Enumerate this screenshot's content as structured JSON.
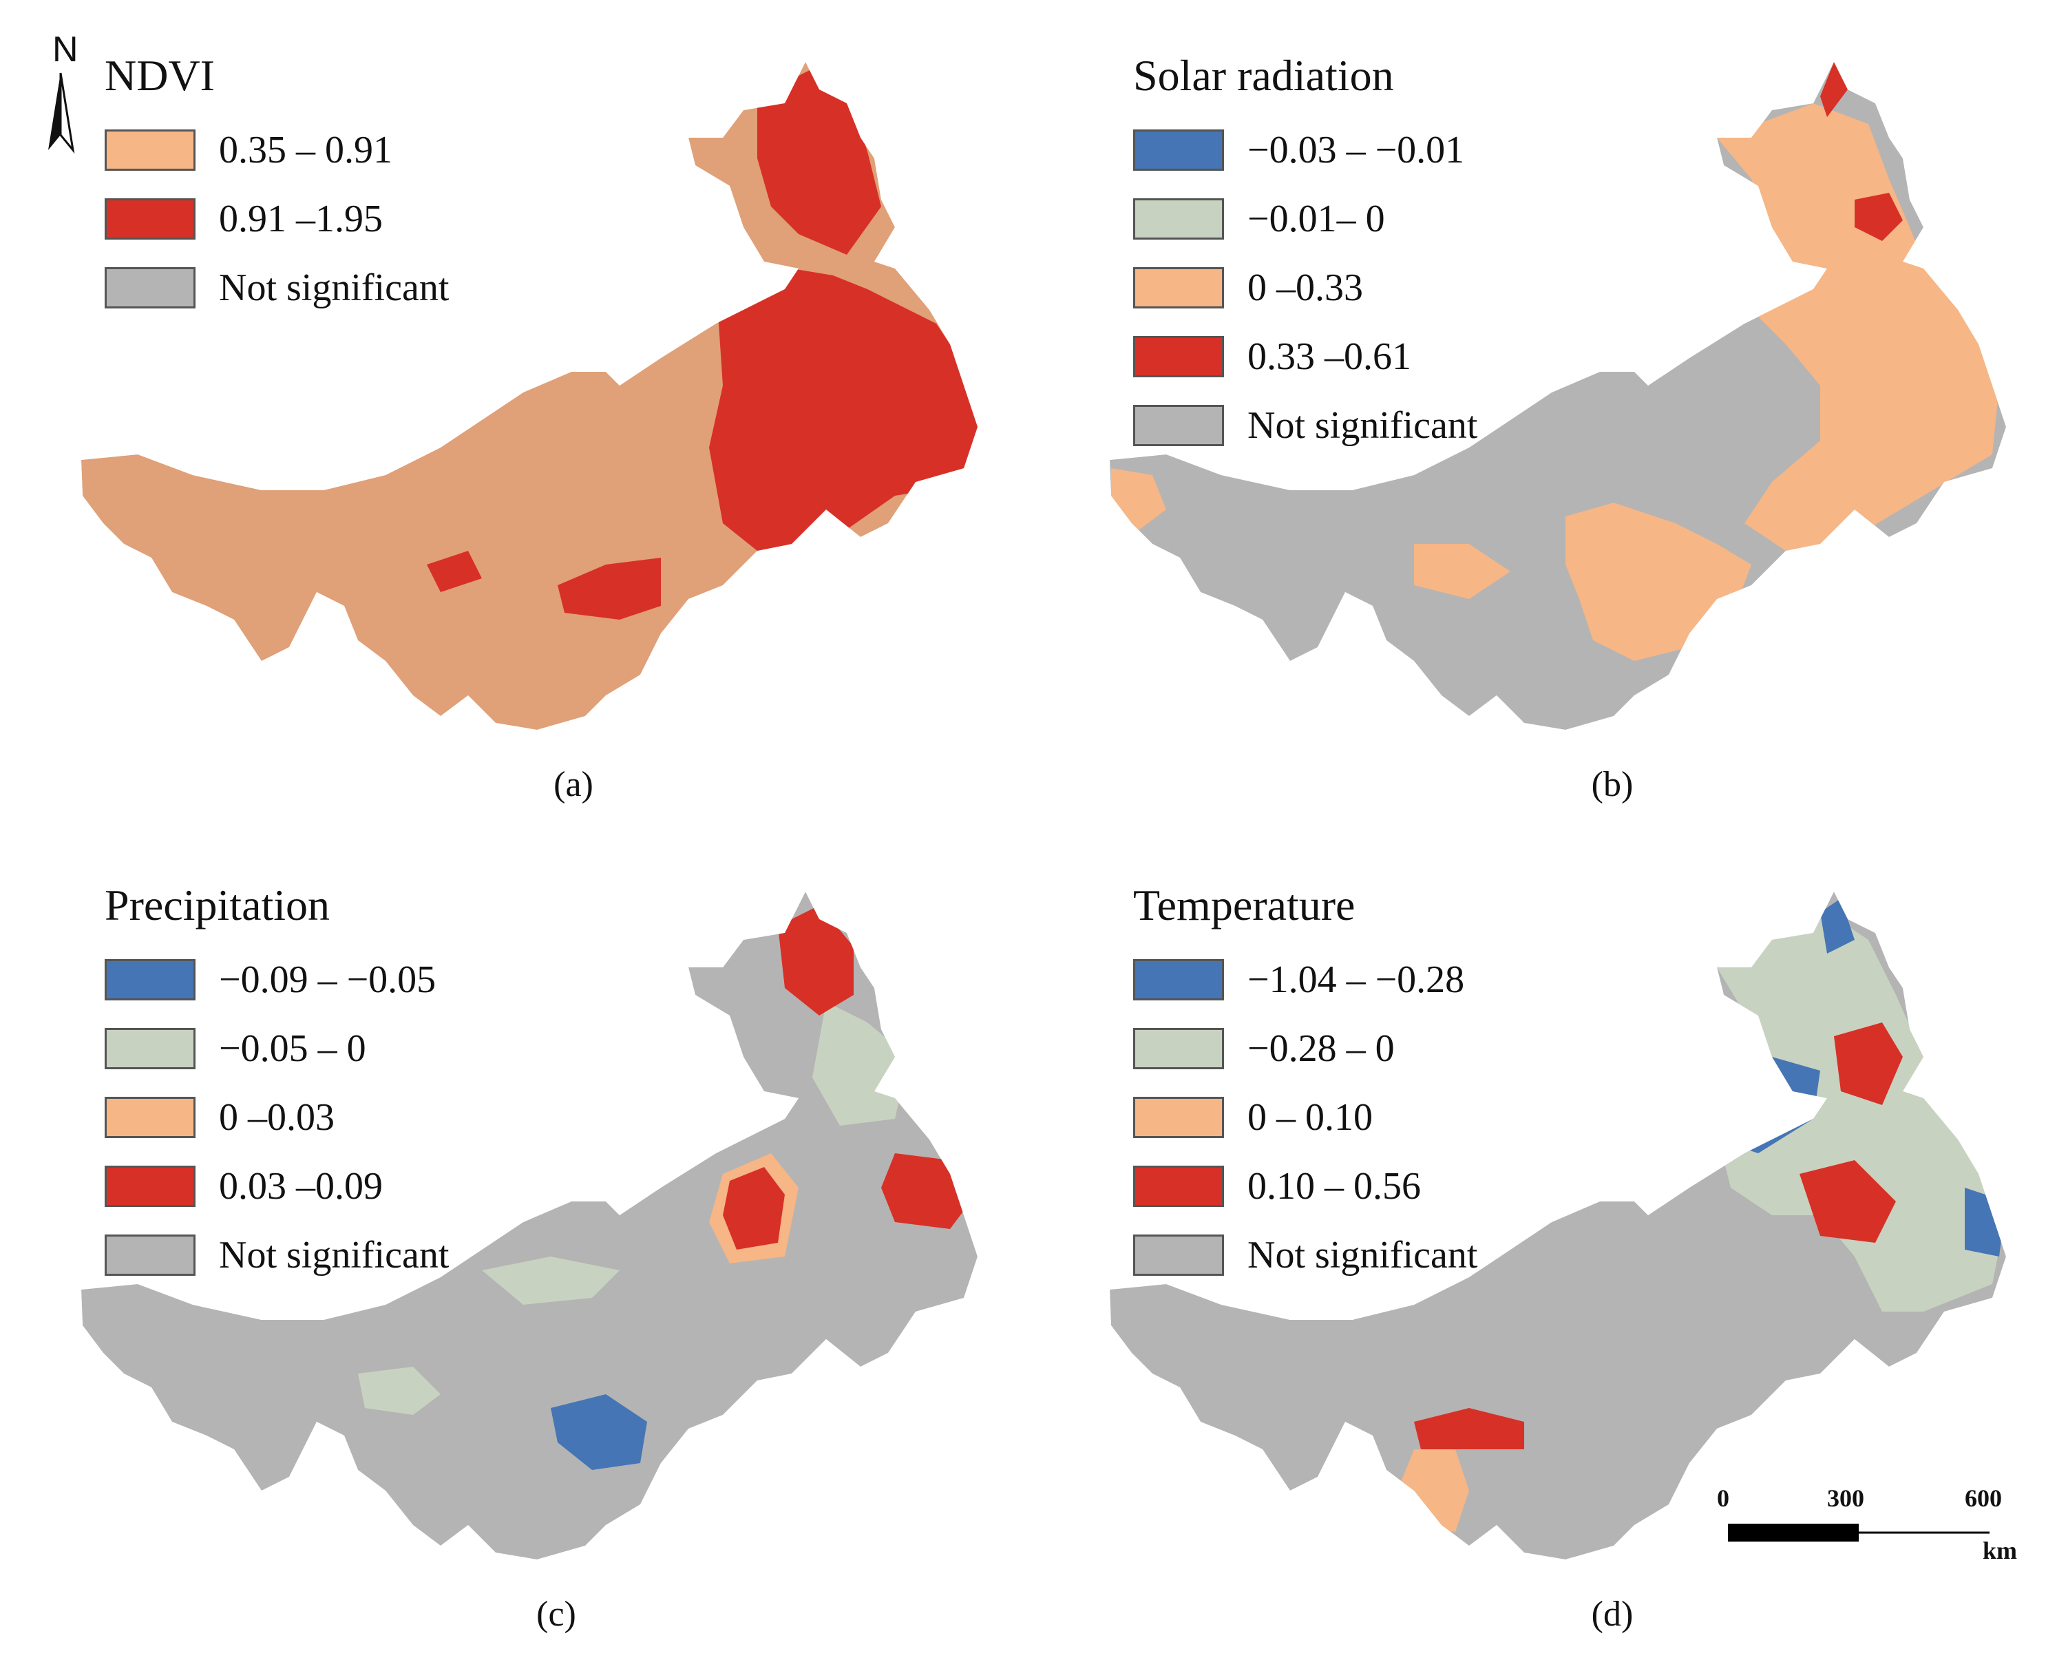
{
  "north_arrow": {
    "letter": "N"
  },
  "panels": [
    {
      "id": "a",
      "title": "NDVI",
      "caption": "(a)",
      "legend": [
        {
          "label": "0.35 – 0.91",
          "color": "#f6b686"
        },
        {
          "label": "0.91 –1.95",
          "color": "#d73027"
        },
        {
          "label": "Not significant",
          "color": "#b4b4b4"
        }
      ]
    },
    {
      "id": "b",
      "title": "Solar radiation",
      "caption": "(b)",
      "legend": [
        {
          "label": "−0.03 – −0.01",
          "color": "#4575b4"
        },
        {
          "label": "−0.01– 0",
          "color": "#c8d2c0"
        },
        {
          "label": "0 –0.33",
          "color": "#f6b686"
        },
        {
          "label": "0.33 –0.61",
          "color": "#d73027"
        },
        {
          "label": "Not significant",
          "color": "#b4b4b4"
        }
      ]
    },
    {
      "id": "c",
      "title": "Precipitation",
      "caption": "(c)",
      "legend": [
        {
          "label": "−0.09 – −0.05",
          "color": "#4575b4"
        },
        {
          "label": "−0.05 – 0",
          "color": "#c8d2c0"
        },
        {
          "label": "0 –0.03",
          "color": "#f6b686"
        },
        {
          "label": "0.03 –0.09",
          "color": "#d73027"
        },
        {
          "label": "Not significant",
          "color": "#b4b4b4"
        }
      ]
    },
    {
      "id": "d",
      "title": "Temperature",
      "caption": "(d)",
      "legend": [
        {
          "label": "−1.04 – −0.28",
          "color": "#4575b4"
        },
        {
          "label": "−0.28 – 0",
          "color": "#c8d2c0"
        },
        {
          "label": "0 – 0.10",
          "color": "#f6b686"
        },
        {
          "label": "0.10 – 0.56",
          "color": "#d73027"
        },
        {
          "label": "Not significant",
          "color": "#b4b4b4"
        }
      ]
    }
  ],
  "scale_bar": {
    "ticks": [
      "0",
      "300",
      "600"
    ],
    "unit": "km"
  }
}
